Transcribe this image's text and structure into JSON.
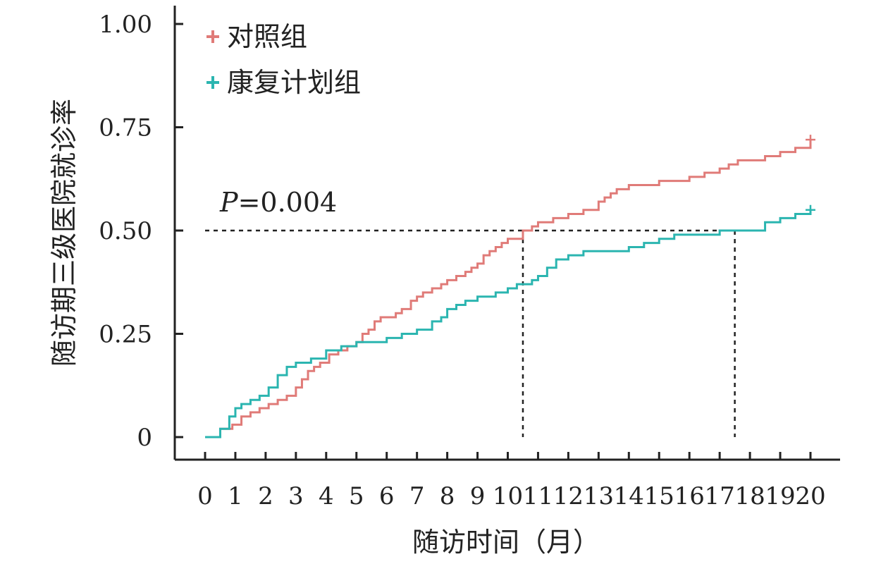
{
  "chart_data": {
    "type": "line",
    "subtype": "step (Kaplan-Meier cumulative incidence)",
    "xlabel": "随访时间（月）",
    "ylabel": "随访期三级医院就诊率",
    "xlim": [
      0,
      20
    ],
    "ylim": [
      0,
      1.0
    ],
    "x_ticks": [
      "0",
      "1",
      "2",
      "3",
      "4",
      "5",
      "6",
      "7",
      "8",
      "9",
      "10",
      "11",
      "12",
      "13",
      "14",
      "15",
      "16",
      "17",
      "18",
      "19",
      "20"
    ],
    "y_ticks": [
      {
        "value": 0,
        "label": "0"
      },
      {
        "value": 0.25,
        "label": "0.25"
      },
      {
        "value": 0.5,
        "label": "0.50"
      },
      {
        "value": 0.75,
        "label": "0.75"
      },
      {
        "value": 1.0,
        "label": "1.00"
      }
    ],
    "legend_position": "top-left",
    "grid": false,
    "annotation": {
      "italic_part": "P",
      "rest": "=0.004"
    },
    "reference": {
      "y": 0.5,
      "x_medians": [
        10.5,
        17.5
      ]
    },
    "series": [
      {
        "name": "对照组",
        "color": "#E07B78",
        "censor_at": [
          20,
          0.72
        ],
        "x": [
          0,
          0.5,
          0.6,
          0.9,
          1.2,
          1.5,
          1.8,
          2.1,
          2.4,
          2.7,
          3.0,
          3.2,
          3.4,
          3.6,
          3.8,
          4.1,
          4.4,
          4.7,
          5.0,
          5.2,
          5.4,
          5.6,
          5.8,
          6.0,
          6.3,
          6.5,
          6.8,
          7.0,
          7.2,
          7.5,
          7.8,
          8.0,
          8.3,
          8.6,
          8.8,
          9.0,
          9.2,
          9.4,
          9.6,
          9.8,
          10.0,
          10.2,
          10.5,
          10.8,
          11.0,
          11.5,
          12.0,
          12.5,
          13.0,
          13.2,
          13.4,
          13.6,
          13.8,
          14.0,
          15.0,
          15.5,
          16.0,
          16.5,
          17.0,
          17.3,
          17.6,
          18.0,
          18.5,
          19.0,
          19.5,
          20.0
        ],
        "y": [
          0,
          0.02,
          0.02,
          0.03,
          0.05,
          0.06,
          0.07,
          0.08,
          0.09,
          0.1,
          0.12,
          0.14,
          0.16,
          0.17,
          0.18,
          0.2,
          0.21,
          0.22,
          0.23,
          0.25,
          0.26,
          0.28,
          0.29,
          0.29,
          0.3,
          0.31,
          0.33,
          0.34,
          0.35,
          0.36,
          0.37,
          0.38,
          0.39,
          0.4,
          0.41,
          0.42,
          0.44,
          0.45,
          0.46,
          0.47,
          0.48,
          0.48,
          0.5,
          0.51,
          0.52,
          0.53,
          0.54,
          0.55,
          0.57,
          0.58,
          0.59,
          0.6,
          0.6,
          0.61,
          0.62,
          0.62,
          0.63,
          0.64,
          0.65,
          0.66,
          0.67,
          0.67,
          0.68,
          0.69,
          0.7,
          0.72
        ]
      },
      {
        "name": "康复计划组",
        "color": "#2BB5B0",
        "censor_at": [
          20,
          0.55
        ],
        "x": [
          0,
          0.5,
          0.8,
          1.0,
          1.2,
          1.5,
          1.8,
          2.1,
          2.4,
          2.7,
          3.0,
          3.5,
          4.0,
          4.5,
          5.0,
          5.5,
          6.0,
          6.5,
          7.0,
          7.5,
          7.8,
          8.0,
          8.3,
          8.6,
          9.0,
          9.3,
          9.6,
          10.0,
          10.3,
          10.5,
          10.8,
          11.0,
          11.3,
          11.6,
          12.0,
          12.5,
          13.0,
          14.0,
          14.5,
          15.0,
          15.5,
          16.0,
          17.0,
          17.5,
          18.0,
          18.5,
          19.0,
          19.5,
          20.0
        ],
        "y": [
          0,
          0.02,
          0.05,
          0.07,
          0.08,
          0.09,
          0.1,
          0.12,
          0.15,
          0.17,
          0.18,
          0.19,
          0.21,
          0.22,
          0.23,
          0.23,
          0.24,
          0.25,
          0.26,
          0.28,
          0.29,
          0.31,
          0.32,
          0.33,
          0.34,
          0.34,
          0.35,
          0.36,
          0.37,
          0.37,
          0.38,
          0.39,
          0.41,
          0.43,
          0.44,
          0.45,
          0.45,
          0.46,
          0.47,
          0.48,
          0.49,
          0.49,
          0.5,
          0.5,
          0.5,
          0.52,
          0.53,
          0.54,
          0.55
        ]
      }
    ]
  }
}
